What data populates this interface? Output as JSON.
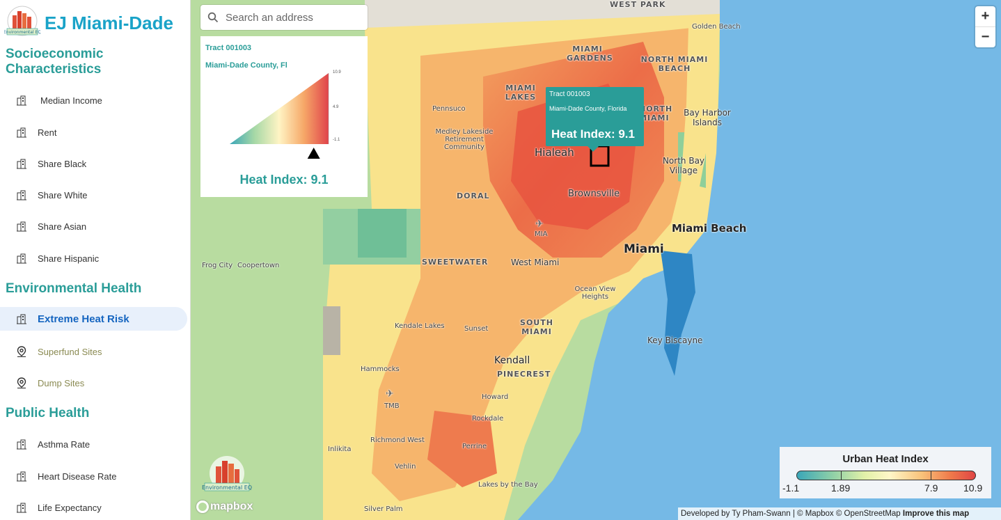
{
  "brand": {
    "title": "EJ Miami-Dade",
    "logo_caption": "Environmental EQ"
  },
  "sidebar": {
    "sections": [
      {
        "title": "Socioeconomic Characteristics"
      },
      {
        "title": "Environmental Health"
      },
      {
        "title": "Public Health"
      }
    ],
    "items": [
      {
        "label": "Median Income",
        "icon": "buildings-icon"
      },
      {
        "label": "Rent",
        "icon": "buildings-icon"
      },
      {
        "label": "Share Black",
        "icon": "buildings-icon"
      },
      {
        "label": "Share White",
        "icon": "buildings-icon"
      },
      {
        "label": "Share Asian",
        "icon": "buildings-icon"
      },
      {
        "label": "Share Hispanic",
        "icon": "buildings-icon"
      },
      {
        "label": "Extreme Heat Risk",
        "icon": "buildings-icon",
        "active": true
      },
      {
        "label": "Superfund Sites",
        "icon": "map-pin-icon"
      },
      {
        "label": "Dump Sites",
        "icon": "map-pin-icon"
      },
      {
        "label": "Asthma Rate",
        "icon": "buildings-icon"
      },
      {
        "label": "Heart Disease Rate",
        "icon": "buildings-icon"
      },
      {
        "label": "Life Expectancy",
        "icon": "buildings-icon"
      }
    ]
  },
  "search": {
    "placeholder": "Search an address"
  },
  "info_panel": {
    "tract": "Tract 001003",
    "county": "Miami-Dade County, Fl",
    "scale_max": "10.9",
    "scale_mid": "4.9",
    "scale_min": "-1.1",
    "value_label": "Heat Index: 9.1",
    "value": 9.1
  },
  "tooltip": {
    "tract": "Tract 001003",
    "county": "Miami-Dade County, Florida",
    "value_label": "Heat Index: 9.1"
  },
  "zoom": {
    "in": "+",
    "out": "−"
  },
  "legend": {
    "title": "Urban Heat Index",
    "ticks": [
      "-1.1",
      "1.89",
      "7.9",
      "10.9"
    ]
  },
  "attribution": {
    "text": "Developed by Ty Pham-Swann | © Mapbox © OpenStreetMap",
    "improve": "Improve this map"
  },
  "mapbox_label": "mapbox",
  "map_labels": {
    "west_park": "WEST PARK",
    "golden_beach": "Golden Beach",
    "miami_gardens": [
      "MIAMI",
      "GARDENS"
    ],
    "north_miami_beach": [
      "NORTH MIAMI",
      "BEACH"
    ],
    "miami_lakes": [
      "MIAMI",
      "LAKES"
    ],
    "north_miami": [
      "NORTH",
      "MIAMI"
    ],
    "bay_harbor": [
      "Bay Harbor",
      "Islands"
    ],
    "pennsuco": "Pennsuco",
    "medley": [
      "Medley Lakeside",
      "Retirement",
      "Community"
    ],
    "hialeah": "Hialeah",
    "north_bay_village": [
      "North Bay",
      "Village"
    ],
    "doral": "DORAL",
    "brownsville": "Brownsville",
    "mia": "MIA",
    "miami_beach": "Miami Beach",
    "miami": "Miami",
    "frog_city": "Frog City",
    "coopertown": "Coopertown",
    "sweetwater": "SWEETWATER",
    "west_miami": "West Miami",
    "ocean_view": [
      "Ocean View",
      "Heights"
    ],
    "kendale_lakes": "Kendale Lakes",
    "sunset": "Sunset",
    "south_miami": [
      "SOUTH",
      "MIAMI"
    ],
    "key_biscayne": "Key Biscayne",
    "kendall": "Kendall",
    "pinecrest": "PINECREST",
    "hammocks": "Hammocks",
    "tmb": "TMB",
    "howard": "Howard",
    "rockdale": "Rockdale",
    "richmond_west": "Richmond West",
    "perrine": "Perrine",
    "inlikita": "Inlikita",
    "vehlin": "Vehlin",
    "lakes_by_the_bay": "Lakes by the Bay",
    "silver_palm": "Silver Palm"
  },
  "colors": {
    "teal": "#2a9d98",
    "brand_blue": "#1aa3c8",
    "water": "#75b9e6",
    "active_bg": "#e8f0fb",
    "active_text": "#1565c0"
  }
}
